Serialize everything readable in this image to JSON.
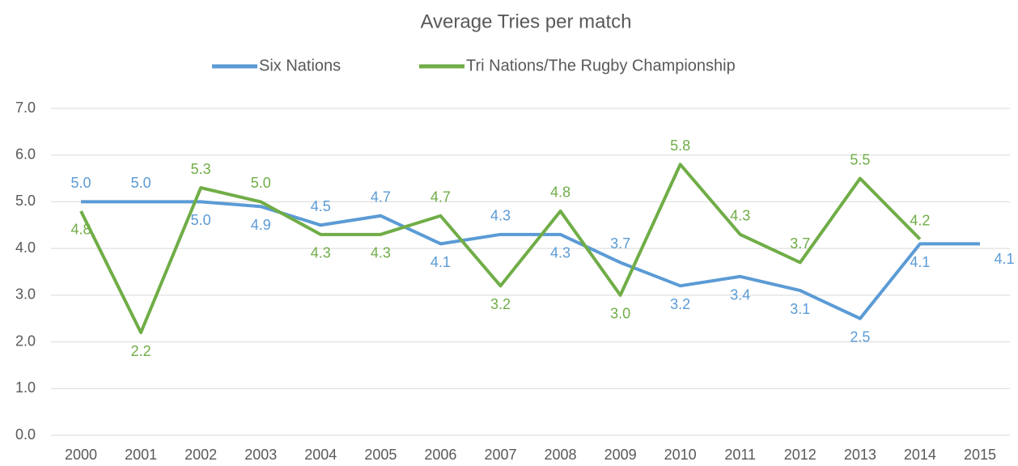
{
  "chart_data": {
    "type": "line",
    "title": "Average Tries per match",
    "categories": [
      "2000",
      "2001",
      "2002",
      "2003",
      "2004",
      "2005",
      "2006",
      "2007",
      "2008",
      "2009",
      "2010",
      "2011",
      "2012",
      "2013",
      "2014",
      "2015"
    ],
    "series": [
      {
        "name": "Six Nations",
        "color": "#5b9bd5",
        "values": [
          5.0,
          5.0,
          5.0,
          4.9,
          4.5,
          4.7,
          4.1,
          4.3,
          4.3,
          3.7,
          3.2,
          3.4,
          3.1,
          2.5,
          4.1,
          4.1
        ],
        "value_labels": [
          "5.0",
          "5.0",
          "5.0",
          "4.9",
          "4.5",
          "4.7",
          "4.1",
          "4.3",
          "4.3",
          "3.7",
          "3.2",
          "3.4",
          "3.1",
          "2.5",
          "4.1",
          "4.1"
        ]
      },
      {
        "name": "Tri Nations/The Rugby Championship",
        "color": "#70ad47",
        "values": [
          4.8,
          2.2,
          5.3,
          5.0,
          4.3,
          4.3,
          4.7,
          3.2,
          4.8,
          3.0,
          5.8,
          4.3,
          3.7,
          5.5,
          4.2,
          null
        ],
        "value_labels": [
          "4.8",
          "2.2",
          "5.3",
          "5.0",
          "4.3",
          "4.3",
          "4.7",
          "3.2",
          "4.8",
          "3.0",
          "5.8",
          "4.3",
          "3.7",
          "5.5",
          "4.2",
          null
        ]
      }
    ],
    "ylim": [
      0,
      7
    ],
    "yticks": [
      {
        "value": 0,
        "label": "0.0"
      },
      {
        "value": 1,
        "label": "1.0"
      },
      {
        "value": 2,
        "label": "2.0"
      },
      {
        "value": 3,
        "label": "3.0"
      },
      {
        "value": 4,
        "label": "4.0"
      },
      {
        "value": 5,
        "label": "5.0"
      },
      {
        "value": 6,
        "label": "6.0"
      },
      {
        "value": 7,
        "label": "7.0"
      }
    ],
    "grid": true,
    "legend": "top"
  }
}
